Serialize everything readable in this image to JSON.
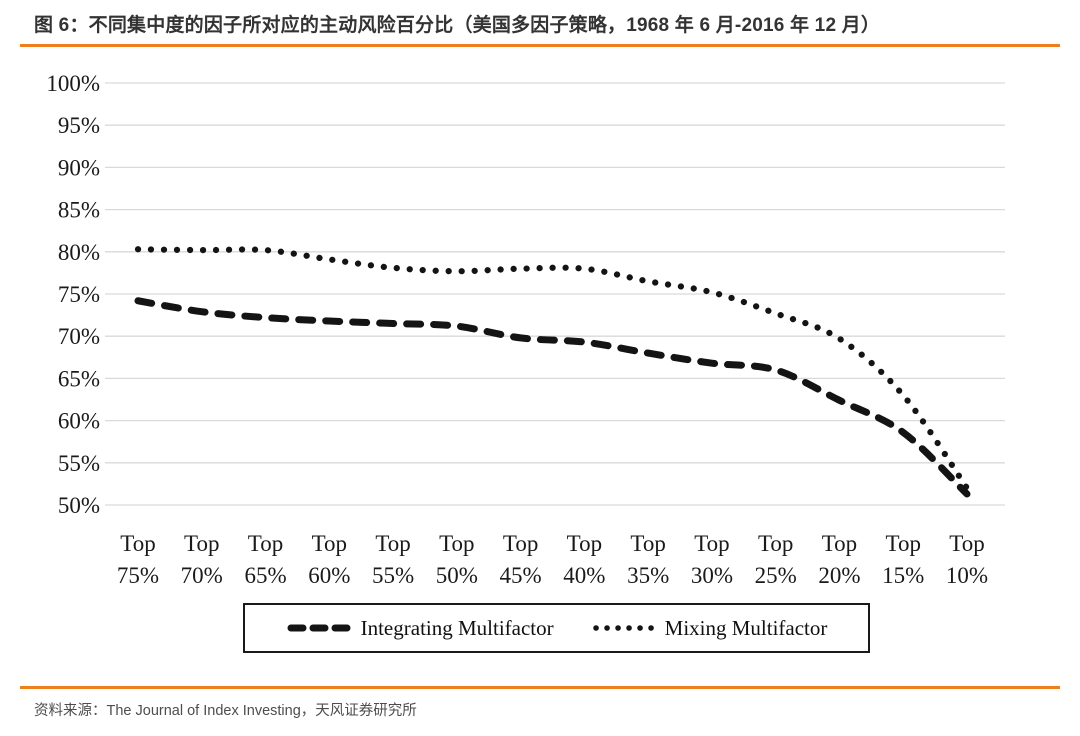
{
  "figure": {
    "title": "图 6：不同集中度的因子所对应的主动风险百分比（美国多因子策略，1968 年 6 月-2016 年 12 月）",
    "source": "资料来源：The Journal of Index Investing，天风证券研究所"
  },
  "colors": {
    "accent_orange": "#F07E1C",
    "series_line": "#141414",
    "gridline": "#D9D9D9",
    "axis_text": "#1A1A1A",
    "title_text": "#333333",
    "source_text": "#4D4D4D",
    "legend_border": "#1A1A1A"
  },
  "chart_data": {
    "type": "line",
    "categories": [
      "Top 75%",
      "Top 70%",
      "Top 65%",
      "Top 60%",
      "Top 55%",
      "Top 50%",
      "Top 45%",
      "Top 40%",
      "Top 35%",
      "Top 30%",
      "Top 25%",
      "Top 20%",
      "Top 15%",
      "Top 10%"
    ],
    "series": [
      {
        "name": "Integrating Multifactor",
        "style": "dashed",
        "values": [
          74.2,
          72.9,
          72.2,
          71.8,
          71.5,
          71.2,
          69.8,
          69.3,
          68.0,
          66.8,
          66.0,
          62.4,
          58.6,
          51.3
        ]
      },
      {
        "name": "Mixing Multifactor",
        "style": "dotted",
        "values": [
          80.3,
          80.2,
          80.2,
          79.1,
          78.1,
          77.7,
          78.0,
          78.0,
          76.5,
          75.2,
          72.7,
          69.7,
          63.0,
          52.0
        ]
      }
    ],
    "ylim": [
      50,
      100
    ],
    "y_tick_step": 5,
    "y_tick_labels": [
      "50%",
      "55%",
      "60%",
      "65%",
      "70%",
      "75%",
      "80%",
      "85%",
      "90%",
      "95%",
      "100%"
    ],
    "ylabel": "",
    "xlabel": "",
    "grid": "horizontal-only",
    "legend_position": "bottom-boxed-center"
  }
}
